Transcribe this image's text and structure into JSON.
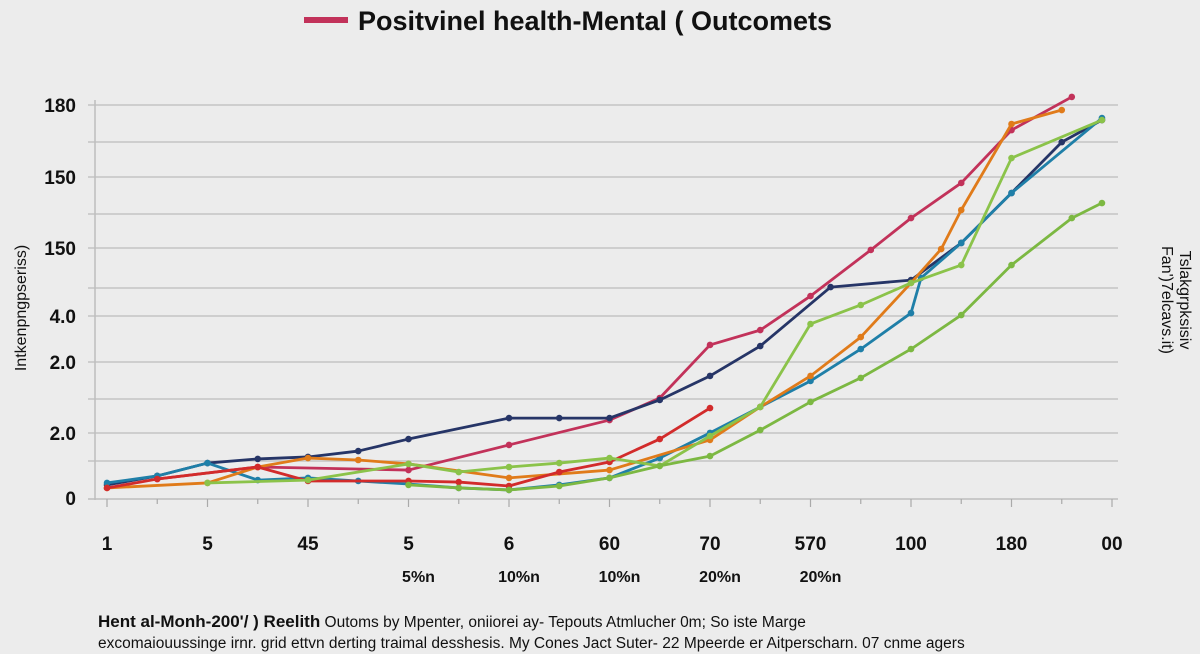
{
  "chart_data": {
    "type": "line",
    "title": "Positvinel health-Mental ( Outcomets",
    "legend": {
      "placement": "top-left of title",
      "entries": [
        {
          "label": "Positvinel health-Mental ( Outcomets",
          "color": "#c2325a"
        }
      ]
    },
    "ylabel": "Intkenpngpseriss)",
    "ylabel_right": [
      "Fan')7elcavs.it)",
      "Tslakgrpksisiv"
    ],
    "y_tick_labels": [
      "180",
      "150",
      "150",
      "4.0",
      "2.0",
      "2.0",
      "0"
    ],
    "x_tick_labels": [
      "1",
      "5",
      "45",
      "5",
      "6",
      "60",
      "70",
      "570",
      "100",
      "180",
      "00"
    ],
    "x_sub_labels": [
      "5%n",
      "10%n",
      "10%n",
      "20%n",
      "20%n"
    ],
    "ylim": [
      0,
      190
    ],
    "grid": true,
    "series": [
      {
        "color": "#c2325a",
        "points": [
          [
            0.5,
            8.7
          ],
          [
            1.5,
            14.2
          ],
          [
            3.0,
            12.8
          ],
          [
            4.0,
            24.3
          ],
          [
            5.0,
            35.7
          ],
          [
            5.5,
            45.8
          ],
          [
            6.0,
            70.1
          ],
          [
            6.5,
            76.9
          ],
          [
            7.0,
            92.5
          ],
          [
            7.6,
            113.6
          ],
          [
            8.0,
            128.2
          ],
          [
            8.5,
            144.3
          ],
          [
            9.0,
            168.5
          ],
          [
            9.6,
            183.7
          ]
        ]
      },
      {
        "color": "#263567",
        "points": [
          [
            0,
            6.0
          ],
          [
            0.5,
            10.1
          ],
          [
            1.0,
            16.0
          ],
          [
            1.5,
            17.9
          ],
          [
            2.0,
            18.8
          ],
          [
            2.5,
            21.5
          ],
          [
            3.0,
            27.0
          ],
          [
            4.0,
            36.6
          ],
          [
            4.5,
            36.6
          ],
          [
            5.0,
            36.6
          ],
          [
            5.5,
            44.9
          ],
          [
            6.0,
            55.9
          ],
          [
            6.5,
            69.6
          ],
          [
            7.2,
            96.6
          ],
          [
            8.0,
            99.8
          ],
          [
            8.5,
            116.8
          ],
          [
            9.0,
            139.7
          ],
          [
            9.5,
            163.0
          ],
          [
            9.9,
            173.1
          ]
        ]
      },
      {
        "color": "#1f7fa8",
        "points": [
          [
            0,
            6.9
          ],
          [
            0.5,
            10.1
          ],
          [
            1.0,
            16.0
          ],
          [
            1.5,
            8.2
          ],
          [
            2.0,
            9.2
          ],
          [
            2.5,
            7.8
          ],
          [
            3.0,
            6.4
          ],
          [
            3.5,
            4.6
          ],
          [
            4.0,
            3.7
          ],
          [
            4.5,
            6.0
          ],
          [
            5.0,
            9.2
          ],
          [
            5.5,
            18.3
          ],
          [
            6.0,
            29.8
          ],
          [
            6.5,
            41.7
          ],
          [
            7.0,
            53.6
          ],
          [
            7.5,
            68.2
          ],
          [
            8.0,
            84.7
          ],
          [
            8.1,
            100.8
          ],
          [
            8.5,
            116.8
          ],
          [
            9.0,
            139.7
          ],
          [
            9.9,
            174.0
          ]
        ]
      },
      {
        "color": "#e07b1a",
        "points": [
          [
            0,
            4.6
          ],
          [
            1.0,
            6.9
          ],
          [
            1.5,
            14.2
          ],
          [
            2.0,
            18.3
          ],
          [
            2.5,
            17.4
          ],
          [
            3.0,
            15.6
          ],
          [
            4.0,
            9.2
          ],
          [
            5.0,
            12.8
          ],
          [
            6.0,
            26.6
          ],
          [
            6.5,
            41.7
          ],
          [
            7.0,
            55.9
          ],
          [
            7.5,
            73.7
          ],
          [
            8.0,
            98.5
          ],
          [
            8.3,
            114.0
          ],
          [
            8.5,
            131.9
          ],
          [
            9.0,
            171.3
          ],
          [
            9.5,
            177.7
          ]
        ]
      },
      {
        "color": "#d22b2b",
        "points": [
          [
            0,
            4.6
          ],
          [
            0.5,
            8.7
          ],
          [
            1.5,
            14.2
          ],
          [
            2.0,
            7.8
          ],
          [
            3.0,
            7.8
          ],
          [
            3.5,
            7.3
          ],
          [
            4.0,
            5.5
          ],
          [
            4.5,
            11.9
          ],
          [
            5.0,
            16.5
          ],
          [
            5.5,
            27.0
          ],
          [
            6.0,
            41.2
          ]
        ]
      },
      {
        "color": "#8bc34a",
        "points": [
          [
            1.0,
            6.9
          ],
          [
            2.0,
            8.2
          ],
          [
            3.0,
            15.6
          ],
          [
            3.5,
            11.9
          ],
          [
            4.0,
            14.2
          ],
          [
            4.5,
            16.0
          ],
          [
            5.0,
            18.3
          ],
          [
            5.5,
            14.7
          ],
          [
            6.0,
            28.4
          ],
          [
            6.5,
            41.7
          ],
          [
            7.0,
            79.7
          ],
          [
            7.5,
            88.4
          ],
          [
            8.0,
            98.5
          ],
          [
            8.5,
            106.7
          ],
          [
            9.0,
            155.7
          ],
          [
            9.9,
            173.1
          ]
        ]
      },
      {
        "color": "#7cb842",
        "points": [
          [
            3.0,
            6.0
          ],
          [
            3.5,
            4.6
          ],
          [
            4.0,
            3.7
          ],
          [
            4.5,
            5.5
          ],
          [
            5.0,
            9.2
          ],
          [
            5.5,
            14.7
          ],
          [
            6.0,
            19.2
          ],
          [
            6.5,
            31.1
          ],
          [
            7.0,
            44.0
          ],
          [
            7.5,
            55.0
          ],
          [
            8.0,
            68.2
          ],
          [
            8.5,
            83.8
          ],
          [
            9.0,
            106.7
          ],
          [
            9.6,
            128.2
          ],
          [
            9.9,
            135.1
          ]
        ]
      }
    ]
  },
  "caption": {
    "line1_bold": "Hent al-Monh-200'/ ) Reelith",
    "line1_rest": " Outoms by Mpenter, oniiorei ay- Tepouts Atmlucher 0m; So iste Marge",
    "line2": "excomaiouussinge irnr. grid ettvn derting traimal desshesis. My Cones Jact Suter- 22 Mpeerde er Aitperscharn. 07 cnme agers"
  }
}
